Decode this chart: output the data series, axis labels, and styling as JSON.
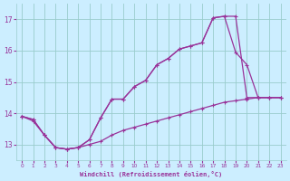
{
  "background_color": "#cceeff",
  "grid_color": "#99cccc",
  "line_color": "#993399",
  "marker": "+",
  "xlabel": "Windchill (Refroidissement éolien,°C)",
  "xlim": [
    -0.5,
    23.5
  ],
  "ylim": [
    12.5,
    17.5
  ],
  "yticks": [
    13,
    14,
    15,
    16,
    17
  ],
  "xticks": [
    0,
    1,
    2,
    3,
    4,
    5,
    6,
    7,
    8,
    9,
    10,
    11,
    12,
    13,
    14,
    15,
    16,
    17,
    18,
    19,
    20,
    21,
    22,
    23
  ],
  "curve1_x": [
    0,
    1,
    2,
    3,
    4,
    5,
    6,
    7,
    8,
    9,
    10,
    11,
    12,
    13,
    14,
    15,
    16,
    17,
    18,
    19,
    20,
    21,
    22,
    23
  ],
  "curve1_y": [
    13.9,
    13.8,
    13.3,
    12.9,
    12.85,
    12.9,
    13.15,
    13.85,
    14.45,
    14.45,
    14.85,
    15.05,
    15.55,
    15.75,
    16.05,
    16.15,
    16.25,
    17.05,
    17.1,
    15.95,
    15.55,
    14.5,
    14.5,
    14.5
  ],
  "curve2_x": [
    0,
    1,
    2,
    3,
    4,
    5,
    6,
    7,
    8,
    9,
    10,
    11,
    12,
    13,
    14,
    15,
    16,
    17,
    18,
    19,
    20,
    21,
    22,
    23
  ],
  "curve2_y": [
    13.9,
    13.8,
    13.3,
    12.9,
    12.85,
    12.9,
    13.15,
    13.85,
    14.45,
    14.45,
    14.85,
    15.05,
    15.55,
    15.75,
    16.05,
    16.15,
    16.25,
    17.05,
    17.1,
    17.1,
    14.5,
    14.5,
    14.5,
    14.5
  ],
  "curve3_x": [
    0,
    1,
    2,
    3,
    4,
    5,
    6,
    7,
    8,
    9,
    10,
    11,
    12,
    13,
    14,
    15,
    16,
    17,
    18,
    19,
    20,
    21,
    22,
    23
  ],
  "curve3_y": [
    13.9,
    13.75,
    13.3,
    12.9,
    12.85,
    12.9,
    13.0,
    13.1,
    13.3,
    13.45,
    13.55,
    13.65,
    13.75,
    13.85,
    13.95,
    14.05,
    14.15,
    14.25,
    14.35,
    14.4,
    14.45,
    14.5,
    14.5,
    14.5
  ]
}
